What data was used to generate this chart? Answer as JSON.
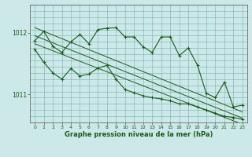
{
  "title": "Graphe pression niveau de la mer (hPa)",
  "bg_color": "#cce8e8",
  "grid_color": "#88bbbb",
  "line_color": "#1a5c1a",
  "x_min": -0.5,
  "x_max": 23.5,
  "y_min": 1010.55,
  "y_max": 1012.45,
  "yticks": [
    1011,
    1012
  ],
  "xticks": [
    0,
    1,
    2,
    3,
    4,
    5,
    6,
    7,
    8,
    9,
    10,
    11,
    12,
    13,
    14,
    15,
    16,
    17,
    18,
    19,
    20,
    21,
    22,
    23
  ],
  "main_line": [
    [
      0,
      1011.87
    ],
    [
      1,
      1012.02
    ],
    [
      2,
      1011.78
    ],
    [
      3,
      1011.68
    ],
    [
      4,
      1011.85
    ],
    [
      5,
      1011.97
    ],
    [
      6,
      1011.82
    ],
    [
      7,
      1012.05
    ],
    [
      8,
      1012.07
    ],
    [
      9,
      1012.08
    ],
    [
      10,
      1011.93
    ],
    [
      11,
      1011.93
    ],
    [
      12,
      1011.77
    ],
    [
      13,
      1011.68
    ],
    [
      14,
      1011.93
    ],
    [
      15,
      1011.93
    ],
    [
      16,
      1011.63
    ],
    [
      17,
      1011.75
    ],
    [
      18,
      1011.48
    ],
    [
      19,
      1011.02
    ],
    [
      20,
      1010.95
    ],
    [
      21,
      1011.2
    ],
    [
      22,
      1010.8
    ],
    [
      23,
      1010.83
    ]
  ],
  "lower_line": [
    [
      0,
      1011.73
    ],
    [
      1,
      1011.52
    ],
    [
      2,
      1011.35
    ],
    [
      3,
      1011.25
    ],
    [
      4,
      1011.42
    ],
    [
      5,
      1011.3
    ],
    [
      6,
      1011.33
    ],
    [
      7,
      1011.43
    ],
    [
      8,
      1011.47
    ],
    [
      9,
      1011.25
    ],
    [
      10,
      1011.08
    ],
    [
      11,
      1011.03
    ],
    [
      12,
      1010.98
    ],
    [
      13,
      1010.95
    ],
    [
      14,
      1010.93
    ],
    [
      15,
      1010.9
    ],
    [
      16,
      1010.85
    ],
    [
      17,
      1010.85
    ],
    [
      18,
      1010.8
    ],
    [
      19,
      1010.75
    ],
    [
      20,
      1010.7
    ],
    [
      21,
      1010.65
    ],
    [
      22,
      1010.63
    ],
    [
      23,
      1010.6
    ]
  ],
  "trend_line1": [
    [
      0,
      1012.08
    ],
    [
      23,
      1010.72
    ]
  ],
  "trend_line2": [
    [
      0,
      1011.95
    ],
    [
      23,
      1010.62
    ]
  ],
  "trend_line3": [
    [
      0,
      1011.82
    ],
    [
      23,
      1010.52
    ]
  ]
}
